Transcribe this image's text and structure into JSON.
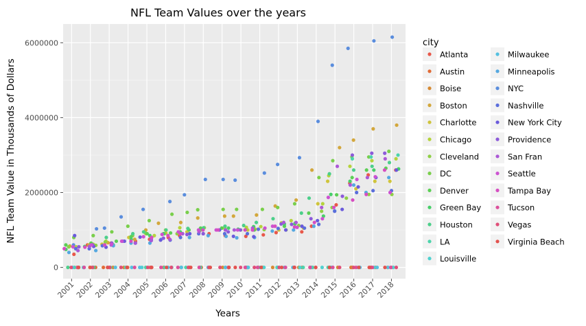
{
  "chart_data": {
    "type": "scatter",
    "title": "NFL Team Values over the years",
    "xlabel": "Years",
    "ylabel": "NFL Team Value in Thousands of Dollars",
    "x_categories": [
      "2001",
      "2002",
      "2003",
      "2004",
      "2005",
      "2006",
      "2007",
      "2008",
      "2009",
      "2010",
      "2011",
      "2012",
      "2013",
      "2014",
      "2015",
      "2016",
      "2017",
      "2018"
    ],
    "y_ticks": [
      0,
      2000000,
      4000000,
      6000000
    ],
    "y_tick_labels": [
      "0",
      "2000000",
      "4000000",
      "6000000"
    ],
    "ylim": [
      -300000,
      6500000
    ],
    "grid": true,
    "jitter": true,
    "legend": {
      "title": "city",
      "placement": "right",
      "columns": 2
    },
    "series": [
      {
        "name": "Atlanta",
        "color": "#e8584a",
        "values": [
          350000,
          600000,
          650000,
          700000,
          750000,
          800000,
          850000,
          900000,
          850000,
          830000,
          870000,
          930000,
          950000,
          1100000,
          1670000,
          2250000,
          2470000,
          2600000
        ]
      },
      {
        "name": "Austin",
        "color": "#e16b36",
        "values": [
          0,
          0,
          0,
          0,
          0,
          0,
          0,
          0,
          0,
          0,
          0,
          0,
          0,
          0,
          0,
          0,
          0,
          0
        ]
      },
      {
        "name": "Boise",
        "color": "#d68a34",
        "values": [
          0,
          0,
          0,
          0,
          0,
          0,
          0,
          0,
          0,
          0,
          0,
          0,
          0,
          0,
          0,
          0,
          0,
          0
        ]
      },
      {
        "name": "Boston",
        "color": "#d3a73c",
        "values": [
          570000,
          600000,
          660000,
          750000,
          1000000,
          1180000,
          1200000,
          1320000,
          1370000,
          1370000,
          1400000,
          1640000,
          1800000,
          2600000,
          3200000,
          3400000,
          3700000,
          3800000
        ]
      },
      {
        "name": "Charlotte",
        "color": "#cfc43c",
        "values": [
          550000,
          600000,
          620000,
          800000,
          900000,
          920000,
          950000,
          1000000,
          1050000,
          1000000,
          1020000,
          1000000,
          1050000,
          1700000,
          2300000,
          2100000,
          2300000,
          2300000
        ]
      },
      {
        "name": "Chicago",
        "color": "#b5d33c",
        "values": [
          550000,
          620000,
          700000,
          850000,
          850000,
          1000000,
          1060000,
          1060000,
          1070000,
          1070000,
          1090000,
          1190000,
          1250000,
          1700000,
          2450000,
          2700000,
          2850000,
          2900000
        ]
      },
      {
        "name": "Cleveland",
        "color": "#8fd046",
        "values": [
          550000,
          590000,
          680000,
          850000,
          920000,
          900000,
          900000,
          1000000,
          1010000,
          1010000,
          1010000,
          1000000,
          1120000,
          1500000,
          1600000,
          1850000,
          1950000,
          1950000
        ]
      },
      {
        "name": "DC",
        "color": "#79cf4b",
        "values": [
          800000,
          850000,
          950000,
          1100000,
          1250000,
          1420000,
          1470000,
          1540000,
          1550000,
          1550000,
          1550000,
          1600000,
          1700000,
          2400000,
          2850000,
          2950000,
          2950000,
          3100000
        ]
      },
      {
        "name": "Denver",
        "color": "#5ccf55",
        "values": [
          600000,
          650000,
          700000,
          820000,
          900000,
          920000,
          1000000,
          1050000,
          1050000,
          1000000,
          1000000,
          1100000,
          1160000,
          1450000,
          1940000,
          2400000,
          2600000,
          2650000
        ]
      },
      {
        "name": "Green Bay",
        "color": "#48cf6a",
        "values": [
          480000,
          560000,
          600000,
          750000,
          850000,
          900000,
          950000,
          1000000,
          1050000,
          1020000,
          1090000,
          1160000,
          1180000,
          1370000,
          1950000,
          2300000,
          2600000,
          2630000
        ]
      },
      {
        "name": "Houston",
        "color": "#4ccf8a",
        "values": [
          0,
          0,
          800000,
          900000,
          950000,
          1000000,
          1040000,
          1060000,
          1100000,
          1120000,
          1200000,
          1300000,
          1450000,
          1850000,
          2500000,
          2600000,
          2700000,
          2800000
        ]
      },
      {
        "name": "LA",
        "color": "#4dd4ab",
        "values": [
          0,
          0,
          0,
          0,
          0,
          0,
          0,
          0,
          0,
          0,
          0,
          0,
          0,
          0,
          0,
          2900000,
          2950000,
          3000000
        ]
      },
      {
        "name": "Louisville",
        "color": "#50d1cf",
        "values": [
          0,
          0,
          0,
          0,
          0,
          0,
          0,
          0,
          0,
          0,
          0,
          0,
          0,
          0,
          0,
          0,
          0,
          0
        ]
      },
      {
        "name": "Milwaukee",
        "color": "#54c0e0",
        "values": [
          0,
          0,
          0,
          0,
          0,
          0,
          0,
          0,
          0,
          0,
          0,
          0,
          0,
          0,
          0,
          0,
          0,
          0
        ]
      },
      {
        "name": "Minneapolis",
        "color": "#55a8e0",
        "values": [
          400000,
          450000,
          580000,
          650000,
          650000,
          750000,
          800000,
          850000,
          830000,
          790000,
          800000,
          970000,
          1000000,
          1100000,
          1510000,
          2200000,
          2000000,
          2400000
        ]
      },
      {
        "name": "NYC",
        "color": "#5a8ddd",
        "values": [
          600000,
          1030000,
          1050000,
          1350000,
          1550000,
          1760000,
          1940000,
          2350000,
          2350000,
          2330000,
          2520000,
          2750000,
          2930000,
          3900000,
          5400000,
          5850000,
          6050000,
          6150000
        ]
      },
      {
        "name": "Nashville",
        "color": "#5b6edb",
        "values": [
          500000,
          500000,
          580000,
          650000,
          720000,
          730000,
          800000,
          900000,
          900000,
          900000,
          1020000,
          1040000,
          1050000,
          1150000,
          1500000,
          2000000,
          2050000,
          2050000
        ]
      },
      {
        "name": "New York City",
        "color": "#6a5adb",
        "values": [
          850000,
          560000,
          540000,
          700000,
          810000,
          730000,
          900000,
          900000,
          1000000,
          830000,
          820000,
          1000000,
          1100000,
          1250000,
          1550000,
          2150000,
          2400000,
          2600000
        ]
      },
      {
        "name": "Providence",
        "color": "#8c5ad9",
        "values": [
          550000,
          600000,
          650000,
          700000,
          750000,
          780000,
          880000,
          900000,
          950000,
          1000000,
          1000000,
          1160000,
          1150000,
          1300000,
          1900000,
          3000000,
          3050000,
          3050000
        ]
      },
      {
        "name": "San Fran",
        "color": "#ab58d6",
        "values": [
          450000,
          560000,
          600000,
          650000,
          720000,
          750000,
          900000,
          950000,
          1000000,
          1000000,
          1050000,
          1200000,
          1200000,
          1600000,
          2700000,
          2200000,
          2400000,
          2900000
        ]
      },
      {
        "name": "Seattle",
        "color": "#cc52d1",
        "values": [
          550000,
          600000,
          620000,
          700000,
          820000,
          880000,
          950000,
          1000000,
          1000000,
          1000000,
          1050000,
          1100000,
          1070000,
          1300000,
          1870000,
          2350000,
          2420000,
          2000000
        ]
      },
      {
        "name": "Tampa Bay",
        "color": "#d64ec1",
        "values": [
          500000,
          540000,
          600000,
          700000,
          800000,
          850000,
          900000,
          1000000,
          1000000,
          1000000,
          1000000,
          1100000,
          1080000,
          1200000,
          1600000,
          1800000,
          1950000,
          2600000
        ]
      },
      {
        "name": "Tucson",
        "color": "#dc4f9c",
        "values": [
          0,
          0,
          0,
          0,
          0,
          0,
          0,
          0,
          0,
          0,
          0,
          0,
          0,
          0,
          0,
          0,
          0,
          0
        ]
      },
      {
        "name": "Vegas",
        "color": "#e04f78",
        "values": [
          0,
          0,
          0,
          0,
          0,
          0,
          0,
          0,
          0,
          0,
          0,
          0,
          0,
          0,
          0,
          0,
          0,
          0
        ]
      },
      {
        "name": "Virginia Beach",
        "color": "#e3524e",
        "values": [
          0,
          0,
          0,
          0,
          0,
          0,
          0,
          0,
          0,
          0,
          0,
          0,
          0,
          0,
          0,
          0,
          0,
          0
        ]
      }
    ]
  }
}
